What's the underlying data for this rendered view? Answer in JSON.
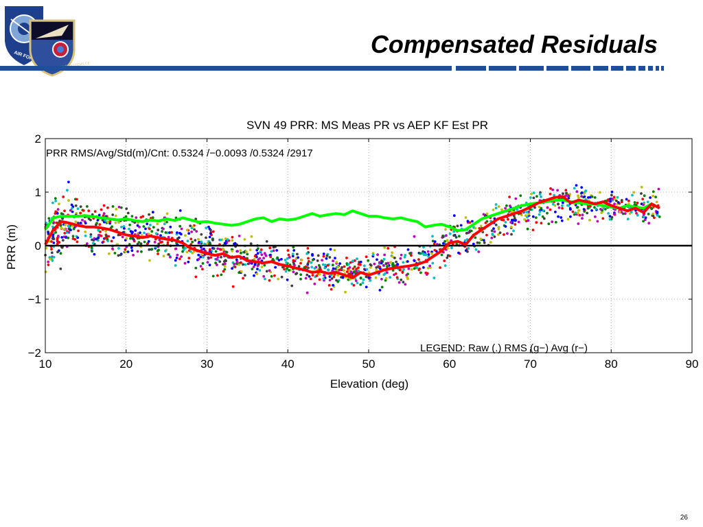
{
  "slide": {
    "title": "Compensated Residuals",
    "page_number": "26",
    "bar_color": "#1f4e9c"
  },
  "logo": {
    "org_text": "AIR FORCE",
    "center_text": "SPACE & MISSILE SYSTEMS CENTER"
  },
  "chart_data": {
    "type": "scatter",
    "title": "SVN 49 PRR: MS Meas PR vs AEP KF Est PR",
    "xlabel": "Elevation (deg)",
    "ylabel": "PRR (m)",
    "xlim": [
      10,
      90
    ],
    "ylim": [
      -2,
      2
    ],
    "xticks": [
      10,
      20,
      30,
      40,
      50,
      60,
      70,
      80,
      90
    ],
    "yticks": [
      -2,
      -1,
      0,
      1,
      2
    ],
    "grid": "dotted",
    "stats_annotation": "PRR RMS/Avg/Std(m)/Cnt: 0.5324 /−0.0093 /0.5324 /2917",
    "legend_annotation": "LEGEND: Raw (.)  RMS (g−) Avg (r−)",
    "zero_line": 0,
    "raw_point_count": 2917,
    "raw_colors": [
      "#0000ff",
      "#008000",
      "#ff0000",
      "#00bfbf",
      "#bf00bf",
      "#bfbf00",
      "#3f3f3f"
    ],
    "raw_trend": {
      "elev": [
        10,
        13,
        17,
        20,
        25,
        28,
        32,
        36,
        40,
        44,
        48,
        52,
        56,
        60,
        62,
        66,
        70,
        74,
        78,
        82,
        86
      ],
      "mean": [
        0.15,
        0.4,
        0.3,
        0.25,
        0.2,
        0.05,
        -0.15,
        -0.25,
        -0.35,
        -0.45,
        -0.5,
        -0.4,
        -0.3,
        0.0,
        0.1,
        0.4,
        0.7,
        0.8,
        0.8,
        0.7,
        0.7
      ],
      "spread": [
        0.6,
        0.5,
        0.45,
        0.42,
        0.42,
        0.45,
        0.4,
        0.32,
        0.3,
        0.28,
        0.28,
        0.3,
        0.32,
        0.35,
        0.35,
        0.35,
        0.35,
        0.3,
        0.28,
        0.25,
        0.25
      ]
    },
    "series": [
      {
        "name": "RMS",
        "color": "#00ff00",
        "x": [
          10,
          11,
          12,
          13,
          14,
          15,
          16,
          17,
          18,
          19,
          20,
          21,
          22,
          23,
          24,
          25,
          26,
          27,
          28,
          29,
          30,
          31,
          32,
          33,
          34,
          35,
          36,
          37,
          38,
          39,
          40,
          41,
          42,
          43,
          44,
          45,
          46,
          47,
          48,
          49,
          50,
          51,
          52,
          53,
          54,
          55,
          56,
          57,
          58,
          59,
          60,
          61,
          62,
          63,
          64,
          65,
          66,
          67,
          68,
          69,
          70,
          71,
          72,
          73,
          74,
          75,
          76,
          77,
          78,
          79,
          80,
          81,
          82,
          83,
          84,
          85,
          86
        ],
        "y": [
          0.3,
          0.52,
          0.55,
          0.55,
          0.55,
          0.56,
          0.54,
          0.52,
          0.5,
          0.48,
          0.5,
          0.47,
          0.45,
          0.48,
          0.46,
          0.5,
          0.47,
          0.52,
          0.48,
          0.44,
          0.45,
          0.42,
          0.4,
          0.38,
          0.4,
          0.45,
          0.5,
          0.52,
          0.45,
          0.5,
          0.48,
          0.5,
          0.55,
          0.6,
          0.55,
          0.58,
          0.6,
          0.58,
          0.65,
          0.6,
          0.55,
          0.55,
          0.52,
          0.5,
          0.52,
          0.48,
          0.45,
          0.35,
          0.38,
          0.4,
          0.35,
          0.28,
          0.3,
          0.4,
          0.5,
          0.55,
          0.6,
          0.65,
          0.7,
          0.75,
          0.78,
          0.8,
          0.82,
          0.85,
          0.85,
          0.82,
          0.8,
          0.78,
          0.78,
          0.75,
          0.72,
          0.7,
          0.75,
          0.72,
          0.7,
          0.78,
          0.7
        ]
      },
      {
        "name": "Avg",
        "color": "#ff0000",
        "x": [
          10,
          11,
          12,
          13,
          14,
          15,
          16,
          17,
          18,
          19,
          20,
          21,
          22,
          23,
          24,
          25,
          26,
          27,
          28,
          29,
          30,
          31,
          32,
          33,
          34,
          35,
          36,
          37,
          38,
          39,
          40,
          41,
          42,
          43,
          44,
          45,
          46,
          47,
          48,
          49,
          50,
          51,
          52,
          53,
          54,
          55,
          56,
          57,
          58,
          59,
          60,
          61,
          62,
          63,
          64,
          65,
          66,
          67,
          68,
          69,
          70,
          71,
          72,
          73,
          74,
          75,
          76,
          77,
          78,
          79,
          80,
          81,
          82,
          83,
          84,
          85,
          86
        ],
        "y": [
          0.02,
          0.3,
          0.45,
          0.42,
          0.38,
          0.35,
          0.35,
          0.33,
          0.3,
          0.25,
          0.2,
          0.18,
          0.15,
          0.18,
          0.15,
          0.12,
          0.1,
          0.05,
          -0.05,
          -0.1,
          -0.15,
          -0.18,
          -0.15,
          -0.22,
          -0.2,
          -0.28,
          -0.3,
          -0.32,
          -0.3,
          -0.35,
          -0.38,
          -0.42,
          -0.45,
          -0.5,
          -0.48,
          -0.52,
          -0.5,
          -0.55,
          -0.6,
          -0.5,
          -0.55,
          -0.5,
          -0.45,
          -0.42,
          -0.4,
          -0.38,
          -0.35,
          -0.3,
          -0.2,
          -0.1,
          0.05,
          0.08,
          0.02,
          0.2,
          0.3,
          0.4,
          0.5,
          0.55,
          0.6,
          0.65,
          0.72,
          0.8,
          0.85,
          0.9,
          0.92,
          0.8,
          0.85,
          0.82,
          0.78,
          0.82,
          0.75,
          0.7,
          0.65,
          0.7,
          0.62,
          0.78,
          0.7
        ]
      }
    ]
  }
}
